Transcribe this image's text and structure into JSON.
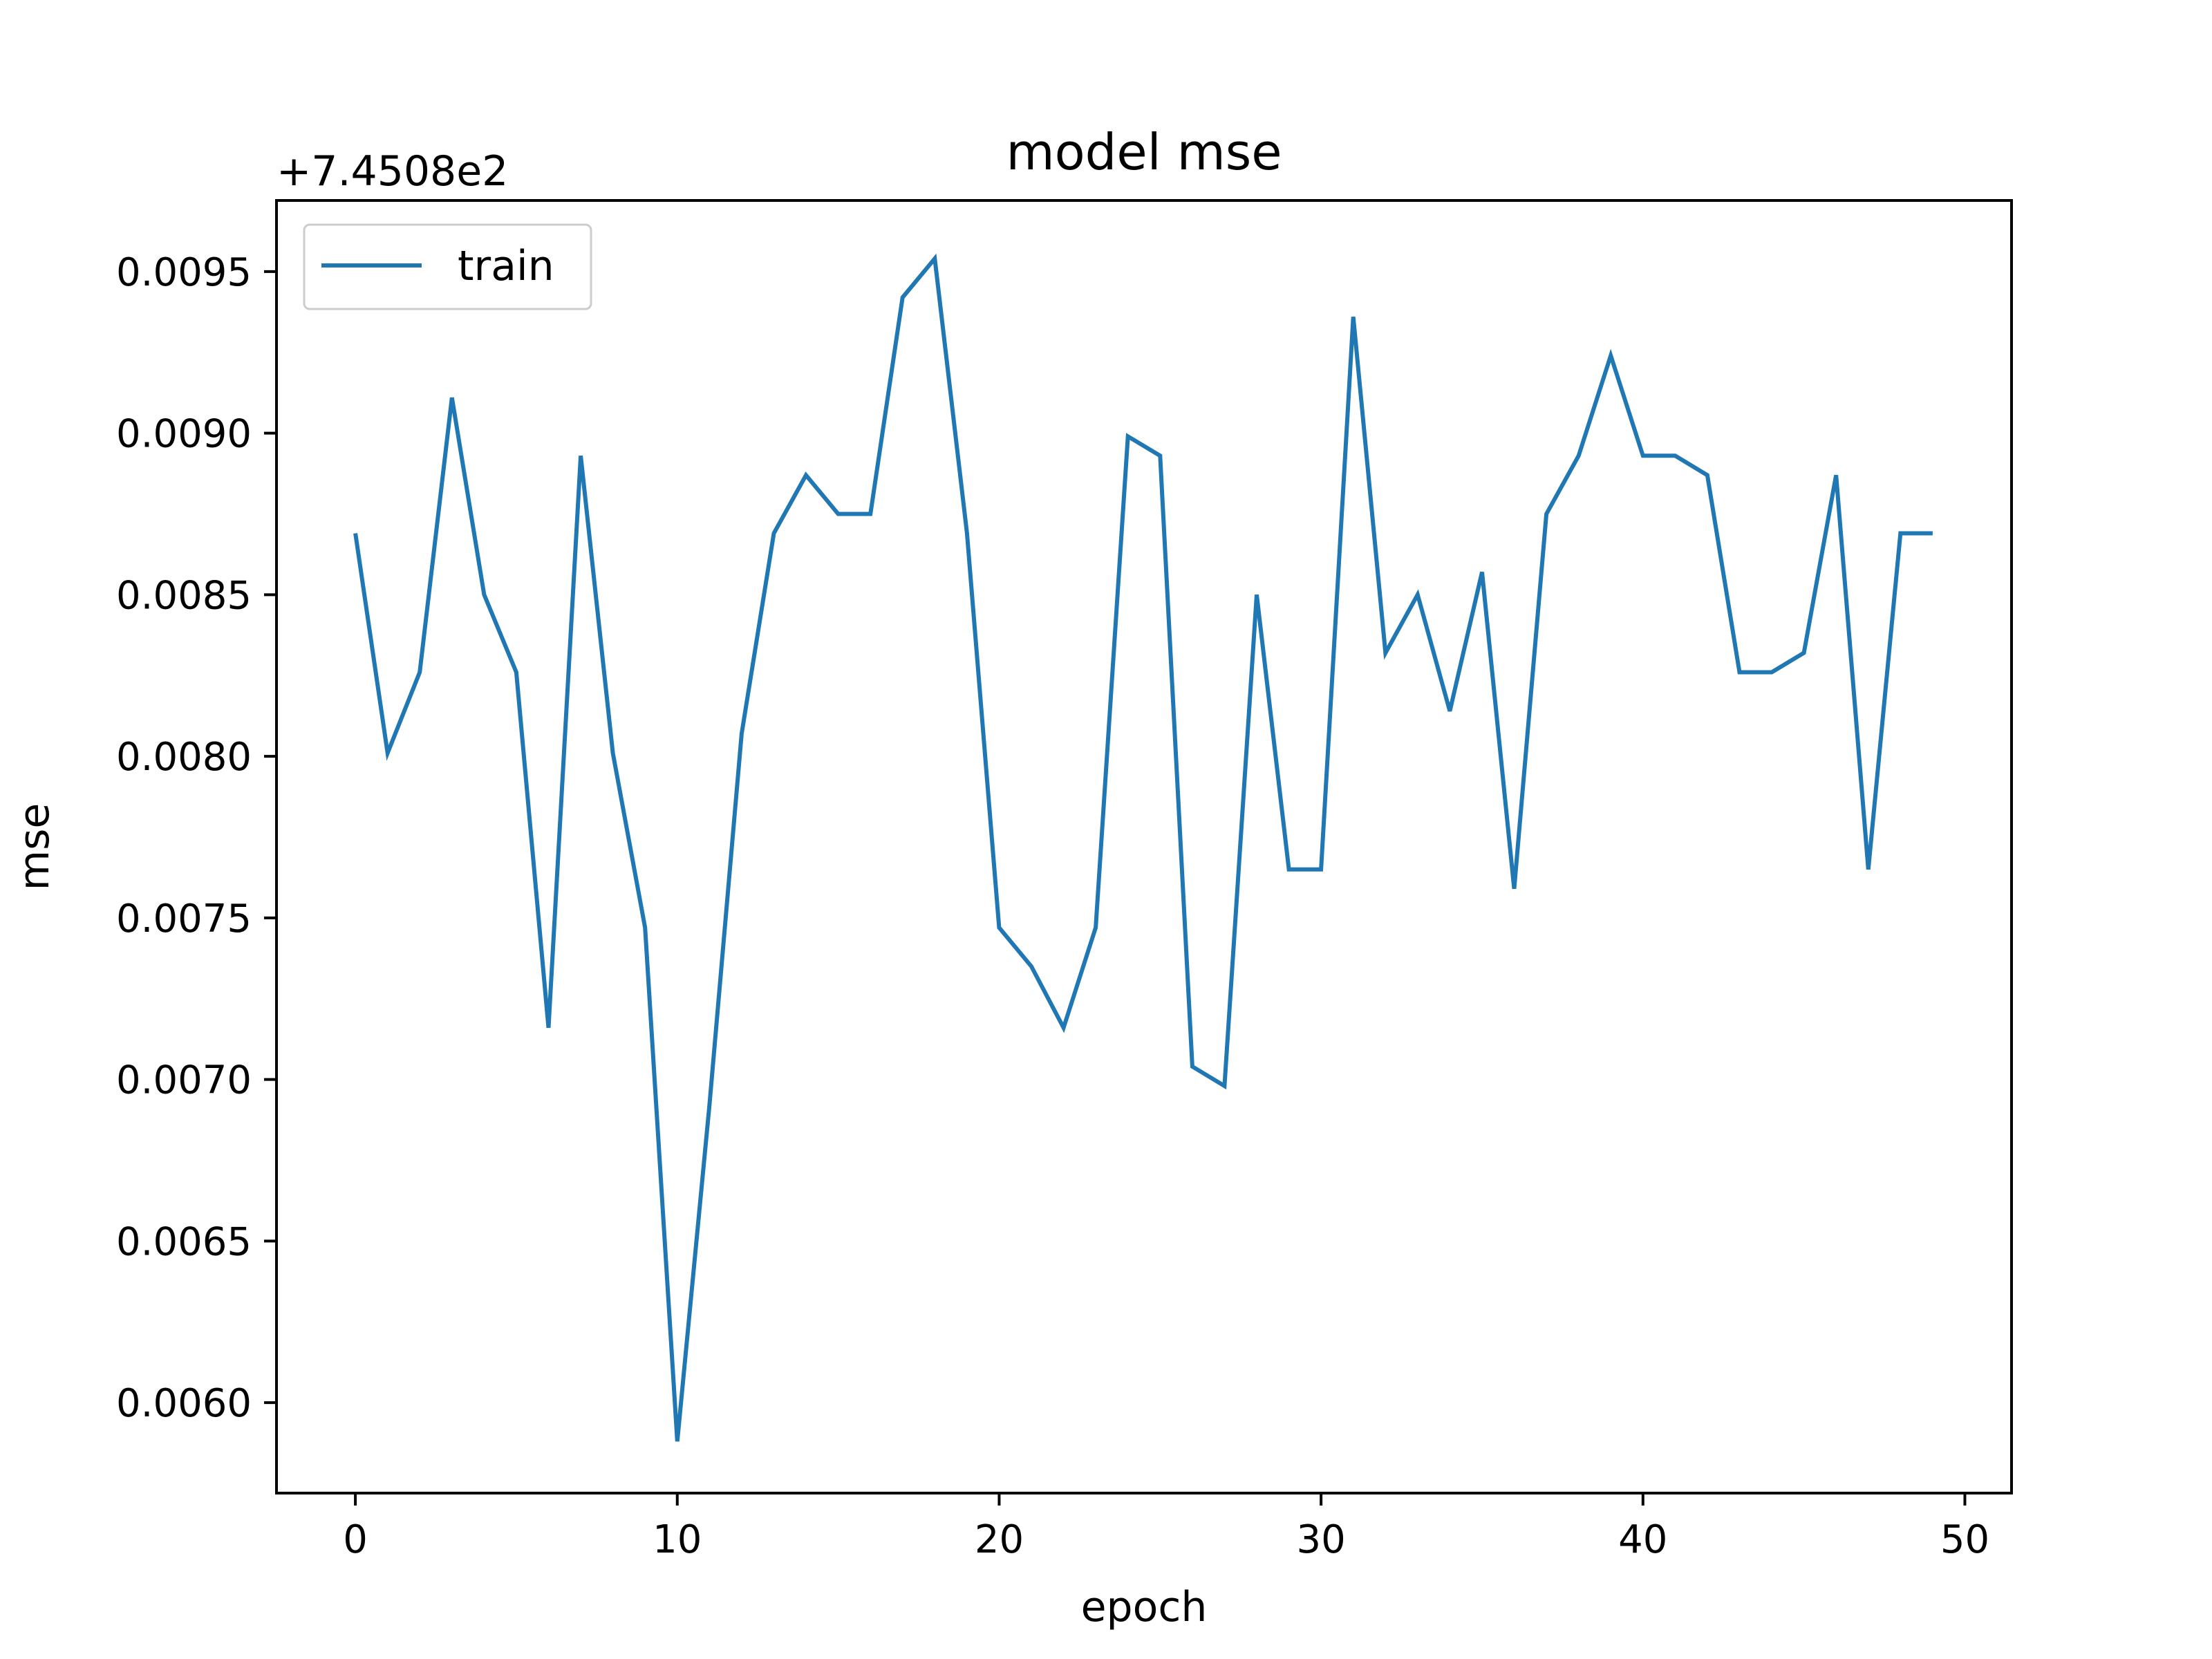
{
  "chart_data": {
    "type": "line",
    "title": "model mse",
    "xlabel": "epoch",
    "ylabel": "mse",
    "y_offset_label": "+7.4508e2",
    "xlim": [
      -2.45,
      51.45
    ],
    "ylim": [
      0.00572,
      0.00972
    ],
    "x_ticks": [
      0,
      10,
      20,
      30,
      40,
      50
    ],
    "y_ticks": [
      0.006,
      0.0065,
      0.007,
      0.0075,
      0.008,
      0.0085,
      0.009,
      0.0095
    ],
    "y_tick_labels": [
      "0.0060",
      "0.0065",
      "0.0070",
      "0.0075",
      "0.0080",
      "0.0085",
      "0.0090",
      "0.0095"
    ],
    "grid": false,
    "legend": {
      "position": "upper-left",
      "entries": [
        "train"
      ]
    },
    "colors": {
      "train": "#1f77b4"
    },
    "series": [
      {
        "name": "train",
        "x": [
          0,
          1,
          2,
          3,
          4,
          5,
          6,
          7,
          8,
          9,
          10,
          11,
          12,
          13,
          14,
          15,
          16,
          17,
          18,
          19,
          20,
          21,
          22,
          23,
          24,
          25,
          26,
          27,
          28,
          29,
          30,
          31,
          32,
          33,
          34,
          35,
          36,
          37,
          38,
          39,
          40,
          41,
          42,
          43,
          44,
          45,
          46,
          47,
          48,
          49
        ],
        "values": [
          0.00869,
          0.00801,
          0.00826,
          0.00911,
          0.0085,
          0.00826,
          0.00716,
          0.00893,
          0.00801,
          0.00747,
          0.00588,
          0.00692,
          0.00807,
          0.00869,
          0.00887,
          0.00875,
          0.00875,
          0.00942,
          0.00954,
          0.00869,
          0.00747,
          0.00735,
          0.00716,
          0.00747,
          0.00899,
          0.00893,
          0.00704,
          0.00698,
          0.0085,
          0.00765,
          0.00765,
          0.00936,
          0.00832,
          0.0085,
          0.00814,
          0.00857,
          0.00759,
          0.00875,
          0.00893,
          0.00924,
          0.00893,
          0.00893,
          0.00887,
          0.00826,
          0.00826,
          0.00832,
          0.00887,
          0.00765,
          0.00869,
          0.00869
        ]
      }
    ]
  }
}
